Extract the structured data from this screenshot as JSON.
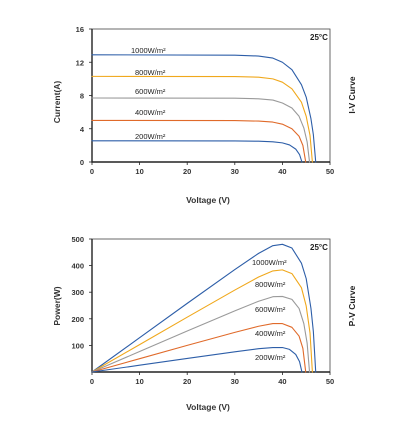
{
  "series_colors": [
    "#2d5ea8",
    "#f0a81c",
    "#9a9a9a",
    "#e06a2a",
    "#2d5ea8"
  ],
  "chart_data": [
    {
      "type": "line",
      "side_label": "I-V Curve",
      "xlabel": "Voltage (V)",
      "ylabel": "Current(A)",
      "annotation": "25°C",
      "xlim": [
        0,
        50
      ],
      "ylim": [
        0,
        16
      ],
      "xticks": [
        0,
        10,
        20,
        30,
        40,
        50
      ],
      "yticks": [
        0,
        4,
        8,
        12,
        16
      ],
      "grid": false,
      "series": [
        {
          "name": "1000W/m²",
          "x": [
            0,
            30,
            35,
            38,
            40,
            42,
            44,
            45,
            46,
            46.5,
            47
          ],
          "y": [
            12.9,
            12.85,
            12.75,
            12.5,
            12.0,
            11.1,
            9.3,
            7.8,
            5.2,
            3.3,
            0
          ]
        },
        {
          "name": "800W/m²",
          "x": [
            0,
            30,
            35,
            38,
            40,
            42,
            44,
            45,
            45.8,
            46.3
          ],
          "y": [
            10.3,
            10.28,
            10.2,
            10.0,
            9.6,
            8.8,
            7.2,
            5.5,
            3.2,
            0
          ]
        },
        {
          "name": "600W/m²",
          "x": [
            0,
            30,
            35,
            38,
            40,
            42,
            43.5,
            44.5,
            45.2,
            45.7
          ],
          "y": [
            7.7,
            7.68,
            7.6,
            7.45,
            7.1,
            6.5,
            5.5,
            4.1,
            2.4,
            0
          ]
        },
        {
          "name": "400W/m²",
          "x": [
            0,
            30,
            35,
            38,
            40,
            42,
            43.5,
            44.3,
            44.9
          ],
          "y": [
            5.0,
            4.98,
            4.92,
            4.8,
            4.55,
            4.0,
            3.1,
            2.0,
            0
          ]
        },
        {
          "name": "200W/m²",
          "x": [
            0,
            30,
            35,
            38,
            40,
            41.5,
            42.8,
            43.6,
            44.1
          ],
          "y": [
            2.55,
            2.54,
            2.5,
            2.43,
            2.3,
            2.05,
            1.55,
            0.9,
            0
          ]
        }
      ]
    },
    {
      "type": "line",
      "side_label": "P-V Curve",
      "xlabel": "Voltage (V)",
      "ylabel": "Power(W)",
      "annotation": "25°C",
      "xlim": [
        0,
        50
      ],
      "ylim": [
        0,
        500
      ],
      "xticks": [
        0,
        10,
        20,
        30,
        40,
        50
      ],
      "yticks": [
        100,
        200,
        300,
        400,
        500
      ],
      "grid": false,
      "series": [
        {
          "name": "1000W/m²",
          "x": [
            0,
            10,
            20,
            30,
            35,
            38,
            40,
            42,
            44,
            45,
            46,
            46.5,
            47
          ],
          "y": [
            0,
            129,
            258,
            385,
            446,
            475,
            480,
            466,
            409,
            351,
            239,
            153,
            0
          ]
        },
        {
          "name": "800W/m²",
          "x": [
            0,
            10,
            20,
            30,
            35,
            38,
            40,
            42,
            44,
            45,
            45.8,
            46.3
          ],
          "y": [
            0,
            103,
            206,
            308,
            357,
            380,
            384,
            370,
            317,
            248,
            147,
            0
          ]
        },
        {
          "name": "600W/m²",
          "x": [
            0,
            10,
            20,
            30,
            35,
            38,
            40,
            42,
            43.5,
            44.5,
            45.2,
            45.7
          ],
          "y": [
            0,
            77,
            154,
            230,
            266,
            283,
            284,
            273,
            239,
            182,
            108,
            0
          ]
        },
        {
          "name": "400W/m²",
          "x": [
            0,
            10,
            20,
            30,
            35,
            38,
            40,
            42,
            43.5,
            44.3,
            44.9
          ],
          "y": [
            0,
            50,
            100,
            149,
            172,
            182,
            182,
            168,
            135,
            89,
            0
          ]
        },
        {
          "name": "200W/m²",
          "x": [
            0,
            10,
            20,
            30,
            35,
            38,
            40,
            41.5,
            42.8,
            43.6,
            44.1
          ],
          "y": [
            0,
            25.5,
            51,
            76,
            87.5,
            92,
            92,
            85,
            66,
            39,
            0
          ]
        }
      ]
    }
  ]
}
